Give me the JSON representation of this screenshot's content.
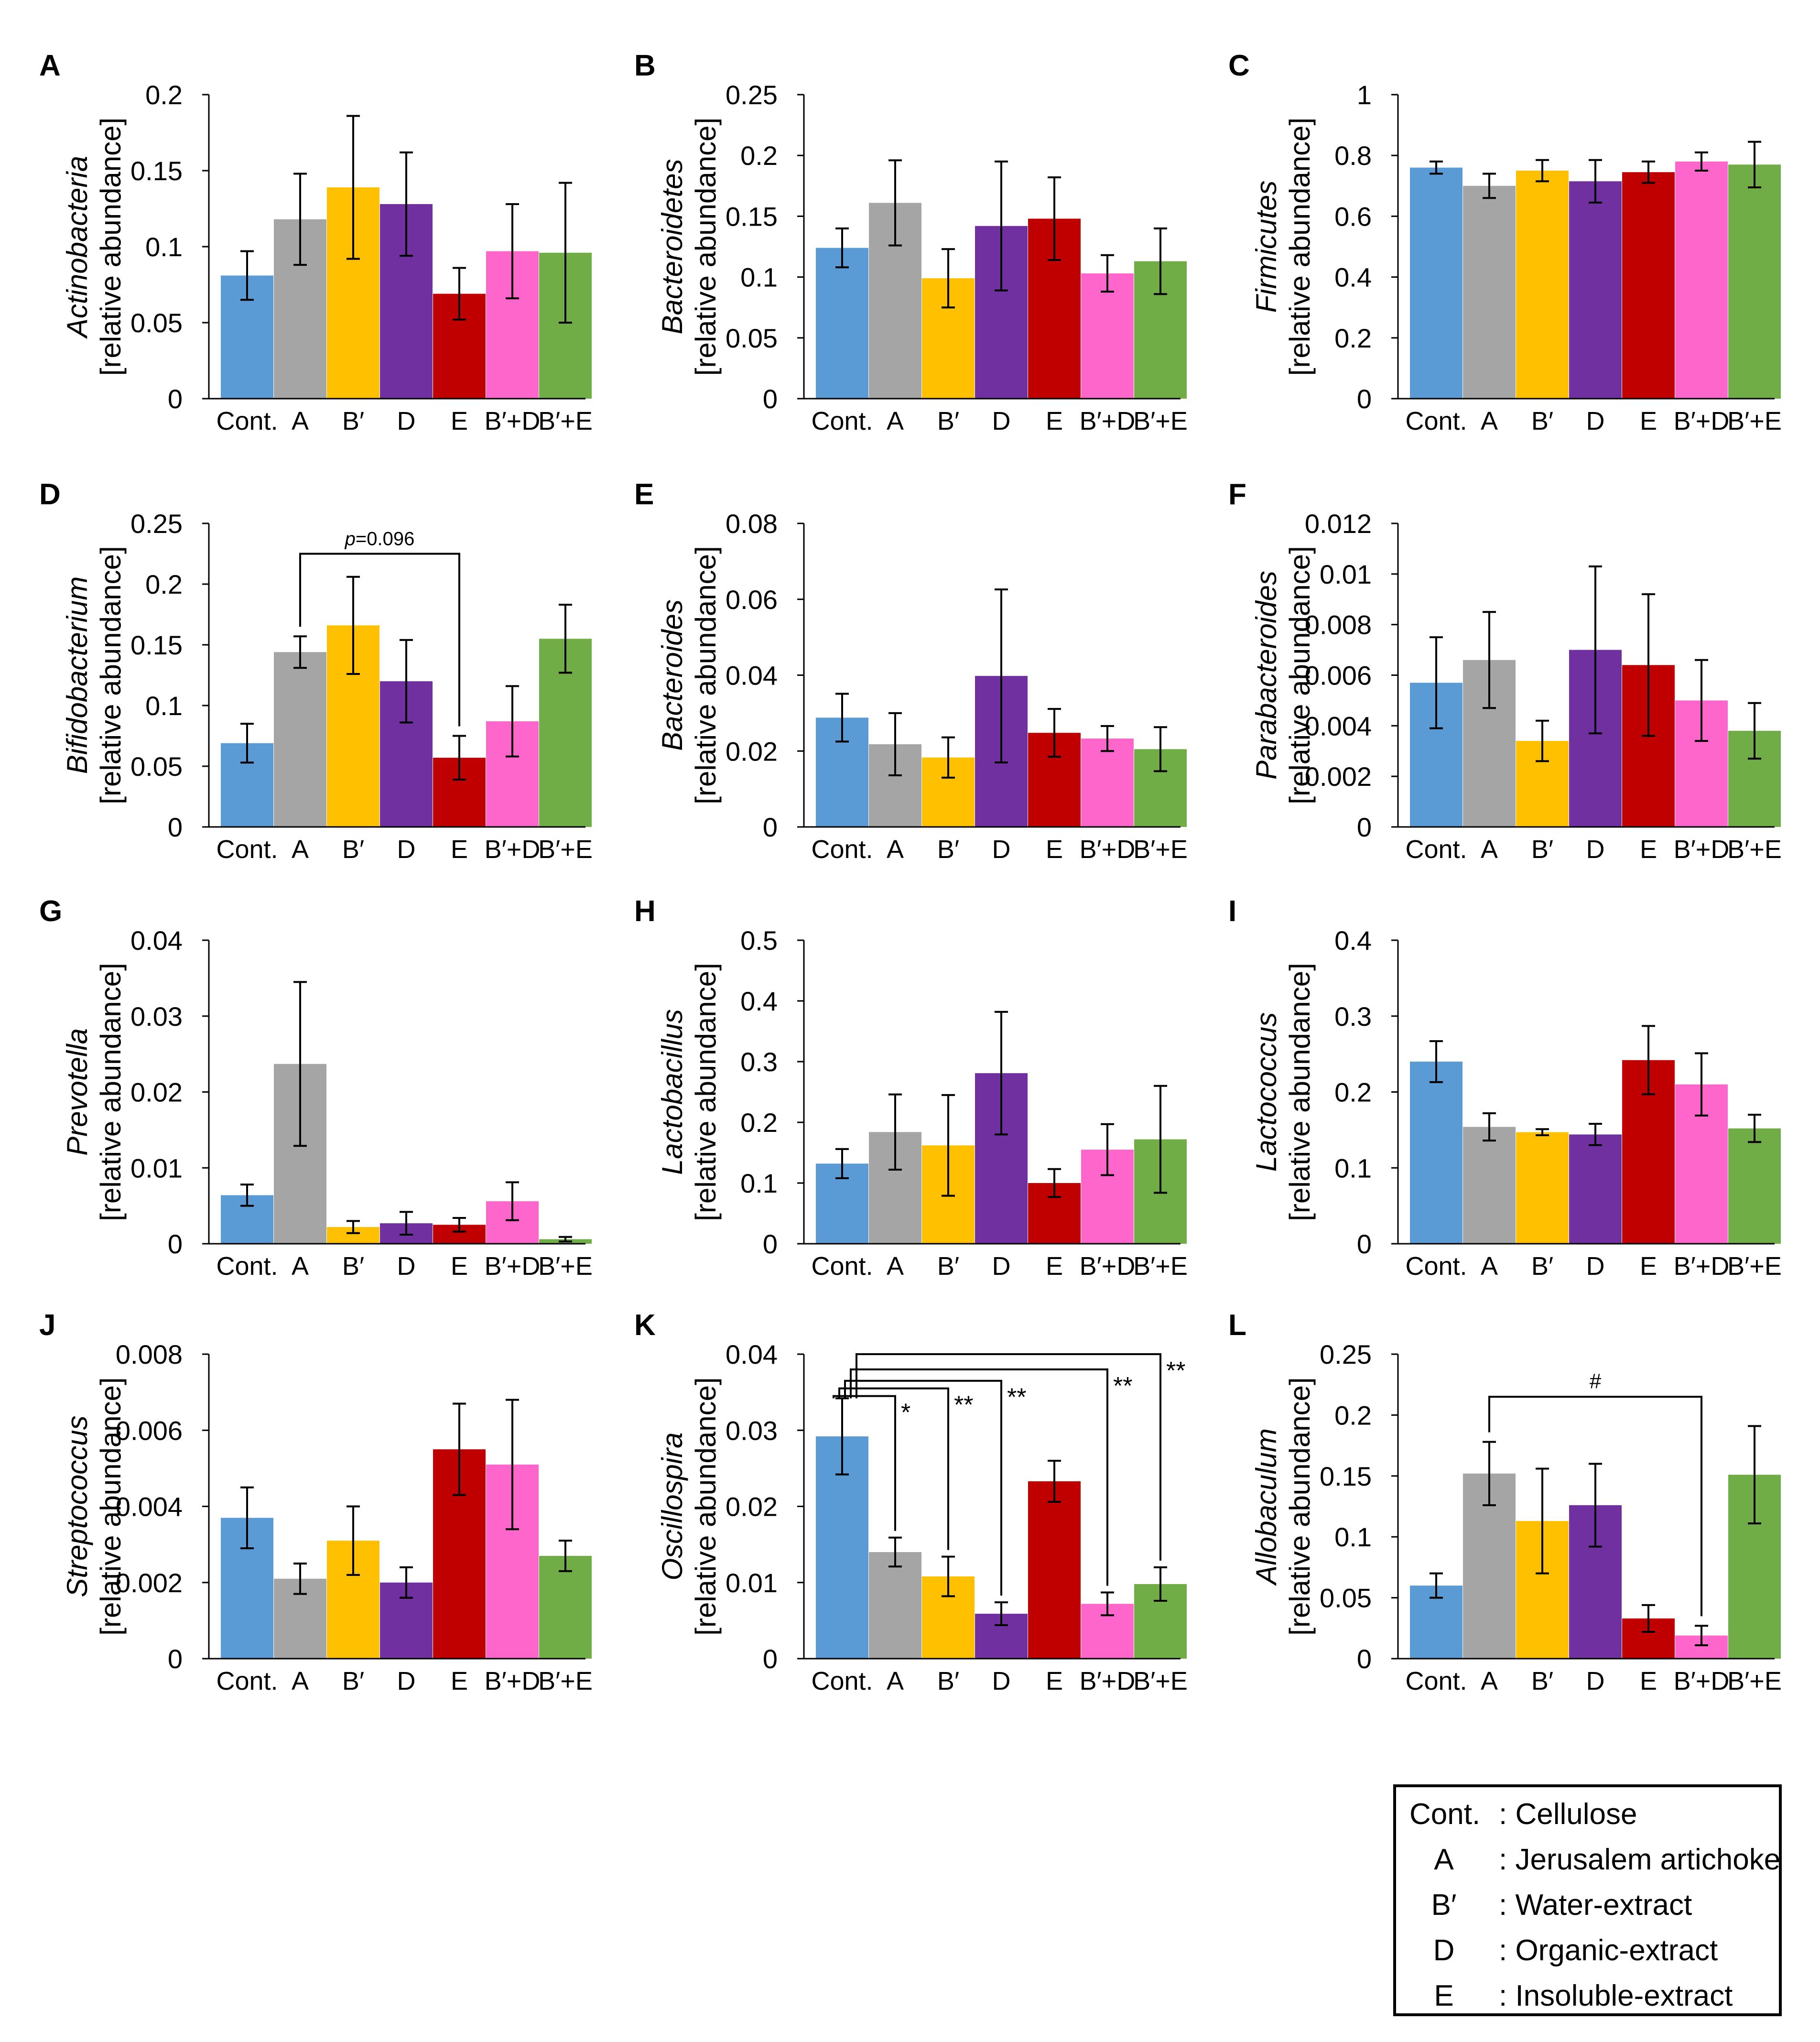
{
  "colors": {
    "Cont.": "#5B9BD5",
    "A": "#A5A5A5",
    "B'": "#FFC000",
    "D": "#7030A0",
    "E": "#C00000",
    "B'+D": "#FF66CC",
    "B'+E": "#70AD47"
  },
  "legend": {
    "items": [
      {
        "key": "Cont.",
        "desc": ": Cellulose"
      },
      {
        "key": "A",
        "desc": ": Jerusalem artichoke"
      },
      {
        "key": "B′",
        "desc": ": Water-extract"
      },
      {
        "key": "D",
        "desc": ": Organic-extract"
      },
      {
        "key": "E",
        "desc": ": Insoluble-extract"
      }
    ]
  },
  "chart_data": [
    {
      "panel": "A",
      "type": "bar",
      "title": "Actinobacteria",
      "ylabel": "[relative abundance]",
      "categories": [
        "Cont.",
        "A",
        "B′",
        "D",
        "E",
        "B′+D",
        "B′+E"
      ],
      "values": [
        0.081,
        0.118,
        0.139,
        0.128,
        0.069,
        0.097,
        0.096
      ],
      "errors": [
        0.016,
        0.03,
        0.047,
        0.034,
        0.017,
        0.031,
        0.046
      ],
      "ylim": [
        0,
        0.2
      ],
      "yticks": [
        "0",
        "0.05",
        "0.1",
        "0.15",
        "0.2"
      ],
      "annotations": []
    },
    {
      "panel": "B",
      "type": "bar",
      "title": "Bacteroidetes",
      "ylabel": "[relative abundance]",
      "categories": [
        "Cont.",
        "A",
        "B′",
        "D",
        "E",
        "B′+D",
        "B′+E"
      ],
      "values": [
        0.124,
        0.161,
        0.099,
        0.142,
        0.148,
        0.103,
        0.113
      ],
      "errors": [
        0.016,
        0.035,
        0.024,
        0.053,
        0.034,
        0.015,
        0.027
      ],
      "ylim": [
        0,
        0.25
      ],
      "yticks": [
        "0",
        "0.05",
        "0.1",
        "0.15",
        "0.2",
        "0.25"
      ],
      "annotations": []
    },
    {
      "panel": "C",
      "type": "bar",
      "title": "Firmicutes",
      "ylabel": "[relative abundance]",
      "categories": [
        "Cont.",
        "A",
        "B′",
        "D",
        "E",
        "B′+D",
        "B′+E"
      ],
      "values": [
        0.76,
        0.7,
        0.75,
        0.715,
        0.745,
        0.78,
        0.77
      ],
      "errors": [
        0.02,
        0.04,
        0.035,
        0.07,
        0.035,
        0.03,
        0.075
      ],
      "ylim": [
        0,
        1
      ],
      "yticks": [
        "0",
        "0.2",
        "0.4",
        "0.6",
        "0.8",
        "1"
      ],
      "annotations": []
    },
    {
      "panel": "D",
      "type": "bar",
      "title": "Bifidobacterium",
      "ylabel": "[relative abundance]",
      "categories": [
        "Cont.",
        "A",
        "B′",
        "D",
        "E",
        "B′+D",
        "B′+E"
      ],
      "values": [
        0.069,
        0.144,
        0.166,
        0.12,
        0.057,
        0.087,
        0.155
      ],
      "errors": [
        0.016,
        0.013,
        0.04,
        0.034,
        0.018,
        0.029,
        0.028
      ],
      "ylim": [
        0,
        0.25
      ],
      "yticks": [
        "0",
        "0.05",
        "0.1",
        "0.15",
        "0.2",
        "0.25"
      ],
      "annotations": [
        {
          "type": "bracket",
          "from": 1,
          "to": 4,
          "level": 0.225,
          "label_prefix": "p",
          "label_value": "=0.096"
        }
      ]
    },
    {
      "panel": "E",
      "type": "bar",
      "title": "Bacteroides",
      "ylabel": "[relative abundance]",
      "categories": [
        "Cont.",
        "A",
        "B′",
        "D",
        "E",
        "B′+D",
        "B′+E"
      ],
      "values": [
        0.0288,
        0.0218,
        0.0183,
        0.0398,
        0.0248,
        0.0233,
        0.0205
      ],
      "errors": [
        0.0063,
        0.0082,
        0.0053,
        0.0228,
        0.0063,
        0.0033,
        0.0058
      ],
      "ylim": [
        0,
        0.08
      ],
      "yticks": [
        "0",
        "0.02",
        "0.04",
        "0.06",
        "0.08"
      ],
      "annotations": []
    },
    {
      "panel": "F",
      "type": "bar",
      "title": "Parabacteroides",
      "ylabel": "[relative abundance]",
      "categories": [
        "Cont.",
        "A",
        "B′",
        "D",
        "E",
        "B′+D",
        "B′+E"
      ],
      "values": [
        0.0057,
        0.0066,
        0.0034,
        0.007,
        0.0064,
        0.005,
        0.0038
      ],
      "errors": [
        0.0018,
        0.0019,
        0.0008,
        0.0033,
        0.0028,
        0.0016,
        0.0011
      ],
      "ylim": [
        0,
        0.012
      ],
      "yticks": [
        "0",
        "0.002",
        "0.004",
        "0.006",
        "0.008",
        "0.01",
        "0.012"
      ],
      "annotations": []
    },
    {
      "panel": "G",
      "type": "bar",
      "title": "Prevotella",
      "ylabel": "[relative abundance]",
      "categories": [
        "Cont.",
        "A",
        "B′",
        "D",
        "E",
        "B′+D",
        "B′+E"
      ],
      "values": [
        0.0064,
        0.0237,
        0.0022,
        0.0027,
        0.0025,
        0.0056,
        0.0006
      ],
      "errors": [
        0.0014,
        0.0108,
        0.0008,
        0.0015,
        0.0009,
        0.0025,
        0.0003
      ],
      "ylim": [
        0,
        0.04
      ],
      "yticks": [
        "0",
        "0.01",
        "0.02",
        "0.03",
        "0.04"
      ],
      "annotations": []
    },
    {
      "panel": "H",
      "type": "bar",
      "title": "Lactobacillus",
      "ylabel": "[relative abundance]",
      "categories": [
        "Cont.",
        "A",
        "B′",
        "D",
        "E",
        "B′+D",
        "B′+E"
      ],
      "values": [
        0.132,
        0.184,
        0.162,
        0.281,
        0.1,
        0.155,
        0.172
      ],
      "errors": [
        0.024,
        0.062,
        0.083,
        0.101,
        0.023,
        0.042,
        0.088
      ],
      "ylim": [
        0,
        0.5
      ],
      "yticks": [
        "0",
        "0.1",
        "0.2",
        "0.3",
        "0.4",
        "0.5"
      ],
      "annotations": []
    },
    {
      "panel": "I",
      "type": "bar",
      "title": "Lactococcus",
      "ylabel": "[relative abundance]",
      "categories": [
        "Cont.",
        "A",
        "B′",
        "D",
        "E",
        "B′+D",
        "B′+E"
      ],
      "values": [
        0.24,
        0.154,
        0.147,
        0.144,
        0.242,
        0.21,
        0.152
      ],
      "errors": [
        0.027,
        0.018,
        0.004,
        0.014,
        0.045,
        0.041,
        0.018
      ],
      "ylim": [
        0,
        0.4
      ],
      "yticks": [
        "0",
        "0.1",
        "0.2",
        "0.3",
        "0.4"
      ],
      "annotations": []
    },
    {
      "panel": "J",
      "type": "bar",
      "title": "Streptococcus",
      "ylabel": "[relative abundance]",
      "categories": [
        "Cont.",
        "A",
        "B′",
        "D",
        "E",
        "B′+D",
        "B′+E"
      ],
      "values": [
        0.0037,
        0.0021,
        0.0031,
        0.002,
        0.0055,
        0.0051,
        0.0027
      ],
      "errors": [
        0.0008,
        0.0004,
        0.0009,
        0.0004,
        0.0012,
        0.0017,
        0.0004
      ],
      "ylim": [
        0,
        0.008
      ],
      "yticks": [
        "0",
        "0.002",
        "0.004",
        "0.006",
        "0.008"
      ],
      "annotations": []
    },
    {
      "panel": "K",
      "type": "bar",
      "title": "Oscillospira",
      "ylabel": "[relative abundance]",
      "categories": [
        "Cont.",
        "A",
        "B′",
        "D",
        "E",
        "B′+D",
        "B′+E"
      ],
      "values": [
        0.0292,
        0.014,
        0.0108,
        0.0059,
        0.0233,
        0.0072,
        0.0098
      ],
      "errors": [
        0.005,
        0.0019,
        0.0026,
        0.0015,
        0.0027,
        0.0015,
        0.0022
      ],
      "ylim": [
        0,
        0.04
      ],
      "yticks": [
        "0",
        "0.01",
        "0.02",
        "0.03",
        "0.04"
      ],
      "annotations": [
        {
          "type": "sig",
          "target": 1,
          "level": 0.0345,
          "label": "*"
        },
        {
          "type": "sig",
          "target": 2,
          "level": 0.0355,
          "label": "**"
        },
        {
          "type": "sig",
          "target": 3,
          "level": 0.0365,
          "label": "**"
        },
        {
          "type": "sig",
          "target": 5,
          "level": 0.038,
          "label": "**"
        },
        {
          "type": "sig",
          "target": 6,
          "level": 0.04,
          "label": "**"
        }
      ]
    },
    {
      "panel": "L",
      "type": "bar",
      "title": "Allobaculum",
      "ylabel": "[relative abundance]",
      "categories": [
        "Cont.",
        "A",
        "B′",
        "D",
        "E",
        "B′+D",
        "B′+E"
      ],
      "values": [
        0.06,
        0.152,
        0.113,
        0.126,
        0.033,
        0.019,
        0.151
      ],
      "errors": [
        0.01,
        0.026,
        0.043,
        0.034,
        0.011,
        0.008,
        0.04
      ],
      "ylim": [
        0,
        0.25
      ],
      "yticks": [
        "0",
        "0.05",
        "0.1",
        "0.15",
        "0.2",
        "0.25"
      ],
      "annotations": [
        {
          "type": "bracket",
          "from": 1,
          "to": 5,
          "level": 0.215,
          "label": "#"
        }
      ]
    }
  ]
}
